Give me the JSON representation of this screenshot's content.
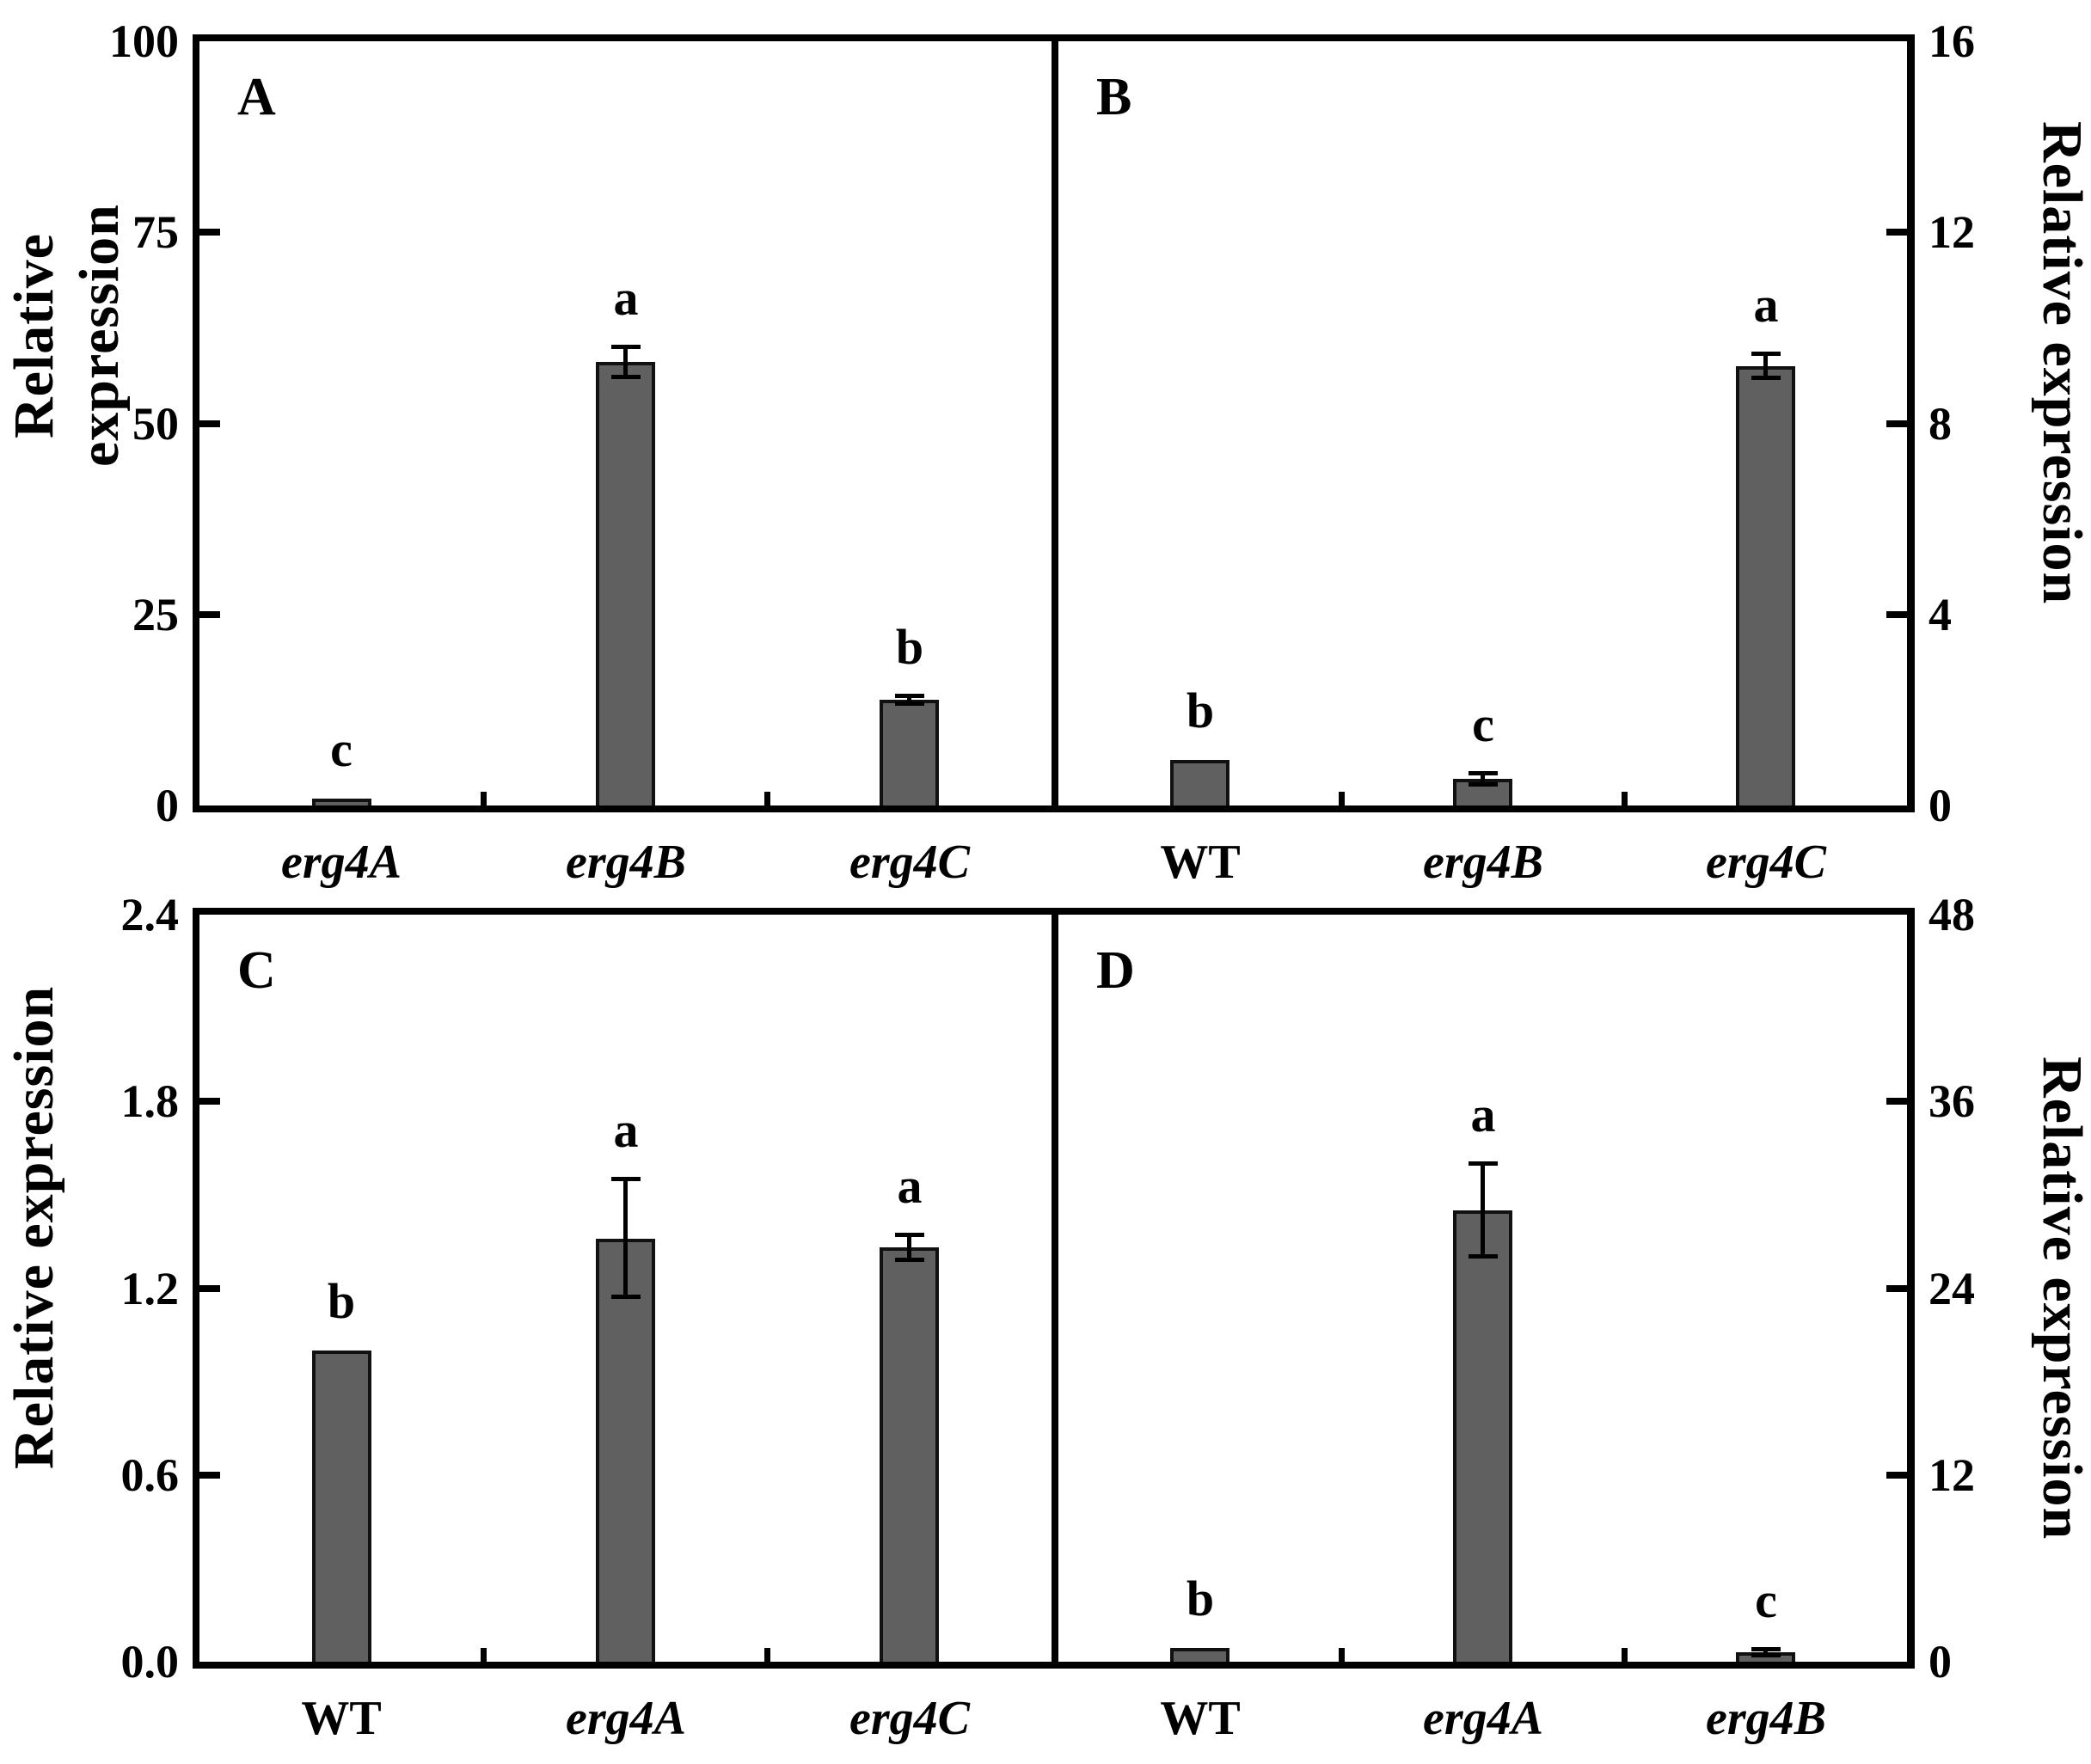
{
  "figure": {
    "background": "#ffffff",
    "bar_fill": "#606060",
    "bar_border": "#111111",
    "axis_color": "#000000"
  },
  "axis_titles": {
    "left_top": "Relative expression",
    "left_bottom": "Relative expression",
    "right_top": "Relative expression",
    "right_bottom": "Relative expression"
  },
  "chart_data": [
    {
      "id": "A",
      "type": "bar",
      "panel_label": "A",
      "ylabel": "Relative expression",
      "ylabel_side": "left",
      "ylim": [
        0,
        100
      ],
      "yticks": [
        0,
        25,
        50,
        75,
        100
      ],
      "ytick_labels": [
        "0",
        "25",
        "50",
        "75",
        "100"
      ],
      "grid": false,
      "legend": null,
      "categories": [
        {
          "label": "erg4A",
          "italic": true
        },
        {
          "label": "erg4B",
          "italic": true
        },
        {
          "label": "erg4C",
          "italic": true
        }
      ],
      "values": [
        0.9,
        58,
        13.8
      ],
      "errors": [
        0,
        2,
        0.5
      ],
      "sig_letters": [
        "c",
        "a",
        "b"
      ]
    },
    {
      "id": "B",
      "type": "bar",
      "panel_label": "B",
      "ylabel": "Relative expression",
      "ylabel_side": "right",
      "ylim": [
        0,
        16
      ],
      "yticks": [
        0,
        4,
        8,
        12,
        16
      ],
      "ytick_labels": [
        "0",
        "4",
        "8",
        "12",
        "16"
      ],
      "grid": false,
      "legend": null,
      "categories": [
        {
          "label": "WT",
          "italic": false
        },
        {
          "label": "erg4B",
          "italic": true
        },
        {
          "label": "erg4C",
          "italic": true
        }
      ],
      "values": [
        0.95,
        0.55,
        9.2
      ],
      "errors": [
        0,
        0.12,
        0.25
      ],
      "sig_letters": [
        "b",
        "c",
        "a"
      ]
    },
    {
      "id": "C",
      "type": "bar",
      "panel_label": "C",
      "ylabel": "Relative expression",
      "ylabel_side": "left",
      "ylim": [
        0,
        2.4
      ],
      "yticks": [
        0,
        0.6,
        1.2,
        1.8,
        2.4
      ],
      "ytick_labels": [
        "0.0",
        "0.6",
        "1.2",
        "1.8",
        "2.4"
      ],
      "grid": false,
      "legend": null,
      "categories": [
        {
          "label": "WT",
          "italic": false
        },
        {
          "label": "erg4A",
          "italic": true
        },
        {
          "label": "erg4C",
          "italic": true
        }
      ],
      "values": [
        1.0,
        1.36,
        1.33
      ],
      "errors": [
        0,
        0.19,
        0.04
      ],
      "sig_letters": [
        "b",
        "a",
        "a"
      ]
    },
    {
      "id": "D",
      "type": "bar",
      "panel_label": "D",
      "ylabel": "Relative expression",
      "ylabel_side": "right",
      "ylim": [
        0,
        48
      ],
      "yticks": [
        0,
        12,
        24,
        36,
        48
      ],
      "ytick_labels": [
        "0",
        "12",
        "24",
        "36",
        "48"
      ],
      "grid": false,
      "legend": null,
      "categories": [
        {
          "label": "WT",
          "italic": false
        },
        {
          "label": "erg4A",
          "italic": true
        },
        {
          "label": "erg4B",
          "italic": true
        }
      ],
      "values": [
        0.9,
        29,
        0.6
      ],
      "errors": [
        0,
        3,
        0.2
      ],
      "sig_letters": [
        "b",
        "a",
        "c"
      ]
    }
  ]
}
